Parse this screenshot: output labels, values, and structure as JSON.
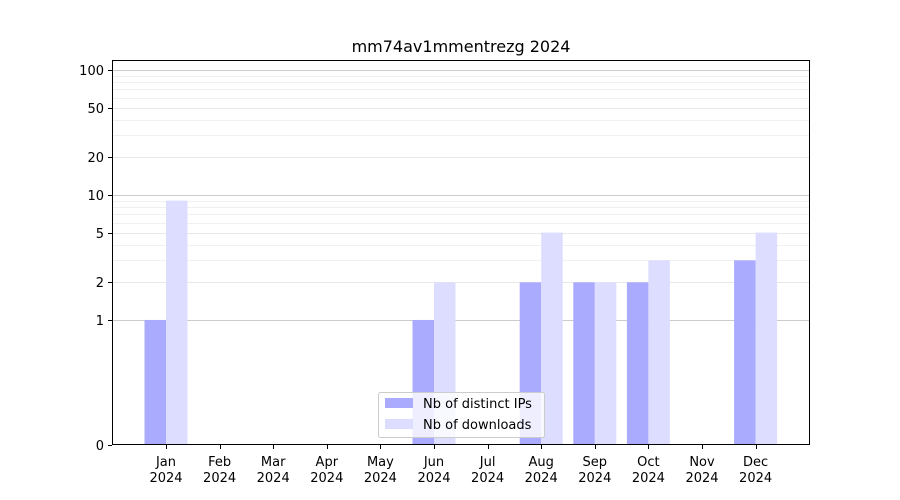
{
  "chart_data": {
    "type": "bar",
    "title": "mm74av1mmentrezg 2024",
    "xlabel": "",
    "ylabel": "",
    "categories": [
      [
        "Jan",
        "2024"
      ],
      [
        "Feb",
        "2024"
      ],
      [
        "Mar",
        "2024"
      ],
      [
        "Apr",
        "2024"
      ],
      [
        "May",
        "2024"
      ],
      [
        "Jun",
        "2024"
      ],
      [
        "Jul",
        "2024"
      ],
      [
        "Aug",
        "2024"
      ],
      [
        "Sep",
        "2024"
      ],
      [
        "Oct",
        "2024"
      ],
      [
        "Nov",
        "2024"
      ],
      [
        "Dec",
        "2024"
      ]
    ],
    "series": [
      {
        "name": "Nb of distinct IPs",
        "color": "#aaaaff",
        "values": [
          1,
          0,
          0,
          0,
          0,
          1,
          0,
          2,
          2,
          2,
          0,
          3
        ]
      },
      {
        "name": "Nb of downloads",
        "color": "#ddddff",
        "values": [
          9,
          0,
          0,
          0,
          0,
          2,
          0,
          5,
          2,
          3,
          0,
          5
        ]
      }
    ],
    "y_scale": "symlog",
    "y_ticks": [
      0,
      1,
      2,
      5,
      10,
      20,
      50,
      100
    ],
    "ylim": [
      0,
      120
    ],
    "grid": true,
    "legend_position": "lower-center"
  }
}
